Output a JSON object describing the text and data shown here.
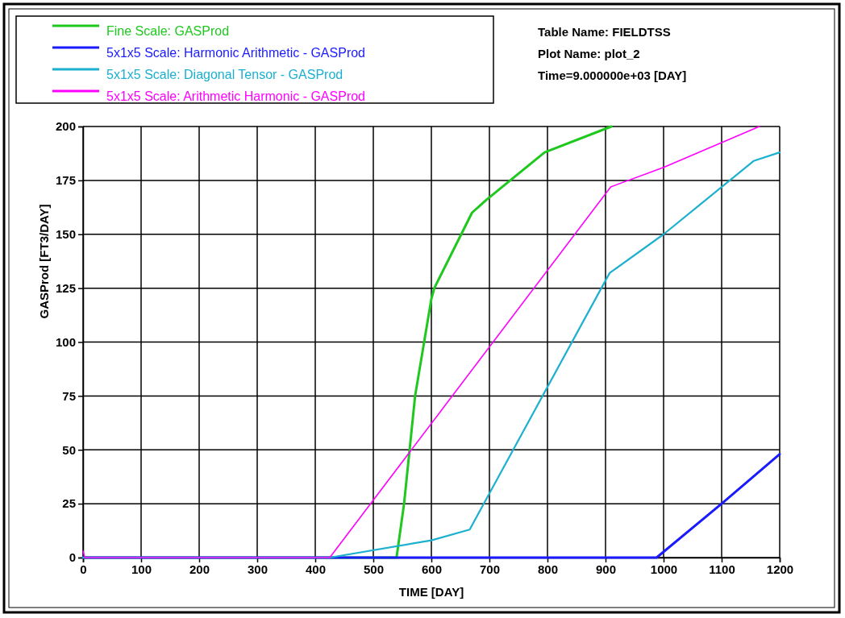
{
  "chart_data": {
    "type": "line",
    "xlabel": "TIME [DAY]",
    "ylabel": "GASProd [FT3/DAY]",
    "annotations": [
      "Table Name: FIELDTSS",
      "Plot Name: plot_2",
      "Time=9.000000e+03 [DAY]"
    ],
    "xlim": [
      0,
      1200
    ],
    "ylim": [
      0,
      200
    ],
    "xticks": [
      0,
      100,
      200,
      300,
      400,
      500,
      600,
      700,
      800,
      900,
      1000,
      1100,
      1200
    ],
    "yticks": [
      0,
      25,
      50,
      75,
      100,
      125,
      150,
      175,
      200
    ],
    "grid": true,
    "legend": "top left",
    "marker": "none",
    "line_style": "solid",
    "series": [
      {
        "name": "Fine Scale: GASProd",
        "color": "#1ec81e",
        "x": [
          0,
          540,
          553,
          572,
          600,
          605,
          670,
          695,
          795,
          910
        ],
        "values": [
          0,
          0,
          25,
          75,
          120,
          125,
          160,
          166,
          188,
          200
        ]
      },
      {
        "name": "5x1x5 Scale: Harmonic Arithmetic - GASProd",
        "color": "#1a1aff",
        "x": [
          0,
          988,
          1100,
          1200
        ],
        "values": [
          0,
          0,
          25,
          48
        ]
      },
      {
        "name": "5x1x5 Scale: Diagonal Tensor - GASProd",
        "color": "#1cb0d0",
        "x": [
          0,
          425,
          600,
          666,
          907,
          1000,
          1155,
          1200
        ],
        "values": [
          0,
          0,
          8,
          13,
          132,
          150,
          184,
          188
        ]
      },
      {
        "name": "5x1x5 Scale: Arithmetic Harmonic - GASProd",
        "color": "#ff00ff",
        "x": [
          0,
          3,
          425,
          909,
          1000,
          1165
        ],
        "values": [
          3,
          0,
          0,
          172,
          181,
          200
        ]
      }
    ]
  }
}
